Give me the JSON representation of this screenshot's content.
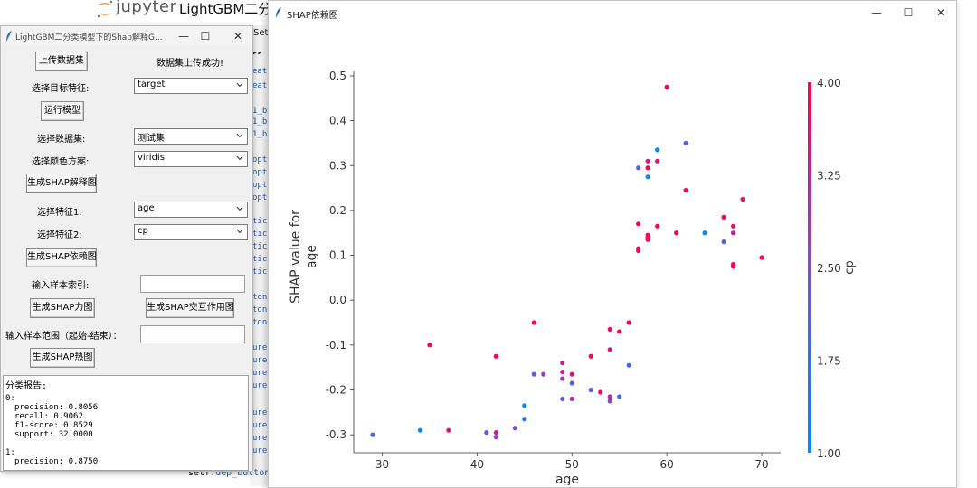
{
  "jupyter": {
    "brand": "jupyter",
    "notebook_title": "LightGBM二分",
    "set_label": "Set",
    "code_fragments": [
      "▸▸",
      "eat",
      "eat",
      "1_b",
      "1_b",
      "1_b",
      "opt",
      "opt",
      "opt",
      "opt",
      "tic",
      "tic",
      "tic",
      "tic",
      "tic",
      "ton",
      "ton",
      "ton",
      "ure",
      "ure",
      "ure",
      "ure",
      "ure",
      "ure",
      "ure",
      "ure"
    ],
    "bottom_code_prefix": "self.",
    "bottom_code_attr": "dep_button"
  },
  "tk_window": {
    "title": "LightGBM二分类模型下的Shap解释G...",
    "upload_button": "上传数据集",
    "upload_status": "数据集上传成功!",
    "target_label": "选择目标特征:",
    "target_value": "target",
    "run_button": "运行模型",
    "dataset_label": "选择数据集:",
    "dataset_value": "测试集",
    "colormap_label": "选择颜色方案:",
    "colormap_value": "viridis",
    "gen_summary_button": "生成SHAP解释图",
    "feature1_label": "选择特征1:",
    "feature1_value": "age",
    "feature2_label": "选择特征2:",
    "feature2_value": "cp",
    "gen_dependence_button": "生成SHAP依赖图",
    "sample_index_label": "输入样本索引:",
    "sample_index_value": "",
    "gen_force_button": "生成SHAP力图",
    "gen_interaction_button": "生成SHAP交互作用图",
    "sample_range_label": "输入样本范围（起始-结束）：",
    "sample_range_value": "",
    "gen_heatmap_button": "生成SHAP热图",
    "report": {
      "heading": "分类报告:",
      "class0_label": "0:",
      "lines0": [
        "precision: 0.8056",
        "recall: 0.9062",
        "f1-score: 0.8529",
        "support: 32.0000"
      ],
      "class1_label": "1:",
      "lines1": [
        "precision: 0.8750"
      ]
    }
  },
  "shap_window": {
    "title": "SHAP依赖图"
  },
  "chart_data": {
    "type": "scatter",
    "xlabel": "age",
    "ylabel": "SHAP value for\nage",
    "colorbar_label": "cp",
    "xlim": [
      27,
      72
    ],
    "ylim": [
      -0.34,
      0.51
    ],
    "xticks": [
      30,
      40,
      50,
      60,
      70
    ],
    "yticks": [
      -0.3,
      -0.2,
      -0.1,
      0.0,
      0.1,
      0.2,
      0.3,
      0.4,
      0.5
    ],
    "colorbar_range": [
      1.0,
      4.0
    ],
    "colorbar_ticks": [
      1.0,
      1.75,
      2.5,
      3.25,
      4.0
    ],
    "colors": {
      "low": "#008afb",
      "mid": "#7b4ed6",
      "high": "#ff0052"
    },
    "points": [
      {
        "x": 29,
        "y": -0.3,
        "cp": 1.95
      },
      {
        "x": 34,
        "y": -0.29,
        "cp": 1.0
      },
      {
        "x": 35,
        "y": -0.1,
        "cp": 4.0
      },
      {
        "x": 37,
        "y": -0.29,
        "cp": 3.6
      },
      {
        "x": 41,
        "y": -0.295,
        "cp": 2.2
      },
      {
        "x": 42,
        "y": -0.295,
        "cp": 3.3
      },
      {
        "x": 42,
        "y": -0.305,
        "cp": 2.6
      },
      {
        "x": 42,
        "y": -0.125,
        "cp": 4.0
      },
      {
        "x": 44,
        "y": -0.285,
        "cp": 2.4
      },
      {
        "x": 45,
        "y": -0.235,
        "cp": 1.0
      },
      {
        "x": 45,
        "y": -0.265,
        "cp": 1.5
      },
      {
        "x": 46,
        "y": -0.05,
        "cp": 4.0
      },
      {
        "x": 46,
        "y": -0.165,
        "cp": 2.1
      },
      {
        "x": 47,
        "y": -0.165,
        "cp": 2.8
      },
      {
        "x": 49,
        "y": -0.14,
        "cp": 3.3
      },
      {
        "x": 49,
        "y": -0.16,
        "cp": 3.3
      },
      {
        "x": 49,
        "y": -0.175,
        "cp": 3.0
      },
      {
        "x": 49,
        "y": -0.22,
        "cp": 2.3
      },
      {
        "x": 50,
        "y": -0.165,
        "cp": 3.6
      },
      {
        "x": 50,
        "y": -0.185,
        "cp": 2.2
      },
      {
        "x": 50,
        "y": -0.22,
        "cp": 3.1
      },
      {
        "x": 52,
        "y": -0.125,
        "cp": 4.0
      },
      {
        "x": 52,
        "y": -0.2,
        "cp": 2.3
      },
      {
        "x": 53,
        "y": -0.205,
        "cp": 3.8
      },
      {
        "x": 54,
        "y": -0.065,
        "cp": 3.8
      },
      {
        "x": 54,
        "y": -0.11,
        "cp": 3.4
      },
      {
        "x": 54,
        "y": -0.215,
        "cp": 3.1
      },
      {
        "x": 54,
        "y": -0.225,
        "cp": 2.7
      },
      {
        "x": 55,
        "y": -0.07,
        "cp": 4.0
      },
      {
        "x": 55,
        "y": -0.215,
        "cp": 1.7
      },
      {
        "x": 56,
        "y": -0.05,
        "cp": 4.0
      },
      {
        "x": 56,
        "y": -0.145,
        "cp": 1.9
      },
      {
        "x": 57,
        "y": 0.295,
        "cp": 2.1
      },
      {
        "x": 57,
        "y": 0.17,
        "cp": 4.0
      },
      {
        "x": 57,
        "y": 0.115,
        "cp": 4.0
      },
      {
        "x": 57,
        "y": 0.11,
        "cp": 3.7
      },
      {
        "x": 58,
        "y": 0.31,
        "cp": 3.4
      },
      {
        "x": 58,
        "y": 0.295,
        "cp": 4.0
      },
      {
        "x": 58,
        "y": 0.275,
        "cp": 1.0
      },
      {
        "x": 58,
        "y": 0.145,
        "cp": 4.0
      },
      {
        "x": 58,
        "y": 0.14,
        "cp": 3.8
      },
      {
        "x": 58,
        "y": 0.135,
        "cp": 4.0
      },
      {
        "x": 59,
        "y": 0.335,
        "cp": 1.0
      },
      {
        "x": 59,
        "y": 0.31,
        "cp": 3.6
      },
      {
        "x": 59,
        "y": 0.165,
        "cp": 4.0
      },
      {
        "x": 60,
        "y": 0.475,
        "cp": 4.0
      },
      {
        "x": 61,
        "y": 0.15,
        "cp": 4.0
      },
      {
        "x": 62,
        "y": 0.35,
        "cp": 2.1
      },
      {
        "x": 62,
        "y": 0.245,
        "cp": 4.0
      },
      {
        "x": 64,
        "y": 0.15,
        "cp": 1.0
      },
      {
        "x": 66,
        "y": 0.185,
        "cp": 3.9
      },
      {
        "x": 66,
        "y": 0.13,
        "cp": 2.0
      },
      {
        "x": 67,
        "y": 0.165,
        "cp": 3.6
      },
      {
        "x": 67,
        "y": 0.15,
        "cp": 3.3
      },
      {
        "x": 67,
        "y": 0.08,
        "cp": 3.5
      },
      {
        "x": 67,
        "y": 0.075,
        "cp": 4.0
      },
      {
        "x": 68,
        "y": 0.225,
        "cp": 3.7
      },
      {
        "x": 70,
        "y": 0.095,
        "cp": 4.0
      }
    ]
  }
}
